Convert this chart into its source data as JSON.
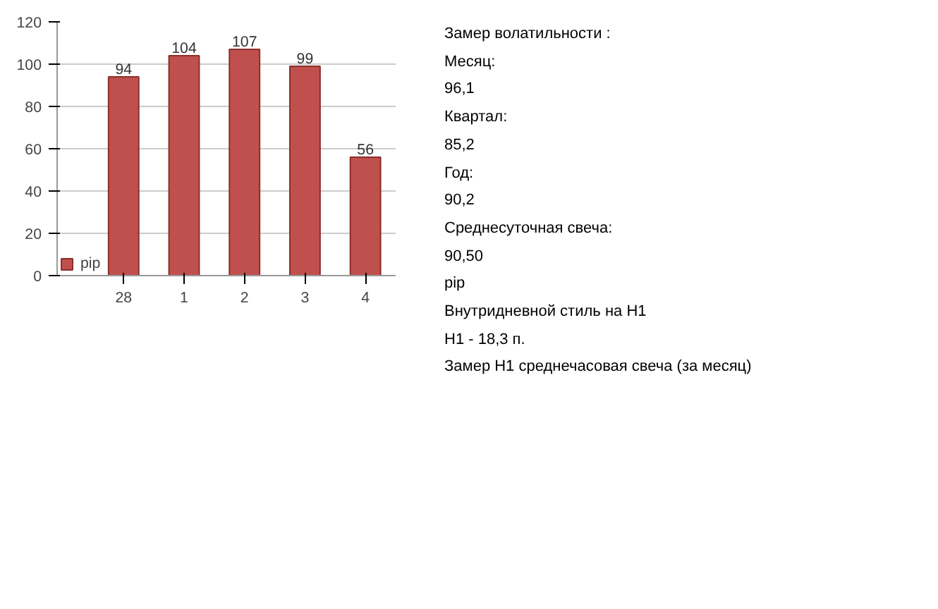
{
  "chart_data": {
    "type": "bar",
    "categories": [
      "28",
      "1",
      "2",
      "3",
      "4"
    ],
    "series": [
      {
        "name": "pip",
        "color": "#c0504d",
        "values": [
          94,
          104,
          107,
          99,
          56
        ]
      }
    ],
    "ylim": [
      0,
      120
    ],
    "yticks": [
      0,
      20,
      40,
      60,
      80,
      100,
      120
    ],
    "grid": "y",
    "data_labels": true,
    "legend": "bottom left",
    "annotations": [
      "Замер  волатильности  :",
      "Месяц:",
      "96,1",
      "Квартал:",
      "85,2",
      "Год:",
      "90,2",
      "Среднесуточная свеча:",
      "90,50",
      "pip",
      "Внутридневной стиль на H1",
      "H1 - 18,3 п.",
      "Замер H1 среднечасовая свеча (за месяц)"
    ]
  }
}
